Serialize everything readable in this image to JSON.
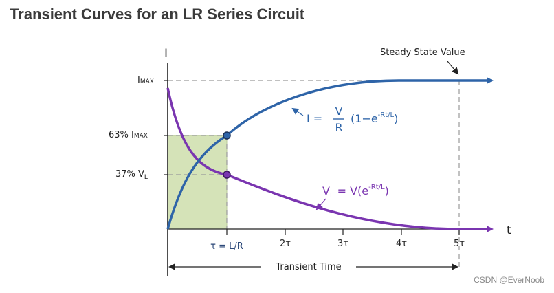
{
  "page_title": "Transient Curves for an LR Series Circuit",
  "watermark": "CSDN @EverNoob",
  "diagram": {
    "axis_i_label": "I",
    "axis_t_label": "t",
    "steady_state_label": "Steady State Value",
    "y_labels": {
      "imax_i": "I",
      "imax_sub": "MAX",
      "pct63": "63% I",
      "pct63_sub": "MAX",
      "pct37": "37% V",
      "pct37_sub": "L"
    },
    "x_ticks": [
      "τ = L/R",
      "2τ",
      "3τ",
      "4τ",
      "5τ"
    ],
    "transient_time_label": "Transient Time",
    "eq_current": {
      "lhs": "I =",
      "num": "V",
      "den": "R",
      "rest": "(1−e",
      "exp": "-Rt/L",
      "close": ")"
    },
    "eq_voltage": {
      "v": "V",
      "v_sub": "L",
      "mid": " = V(e",
      "exp": "-Rt/L",
      "close": ")"
    },
    "colors": {
      "current_curve": "#2e64a8",
      "voltage_curve": "#7a35b0",
      "region_fill": "#d5e3b8",
      "axis": "#222222",
      "dashed": "#9a9a9a",
      "marker_current": "#2e64a8",
      "marker_voltage": "#7a35b0"
    }
  }
}
